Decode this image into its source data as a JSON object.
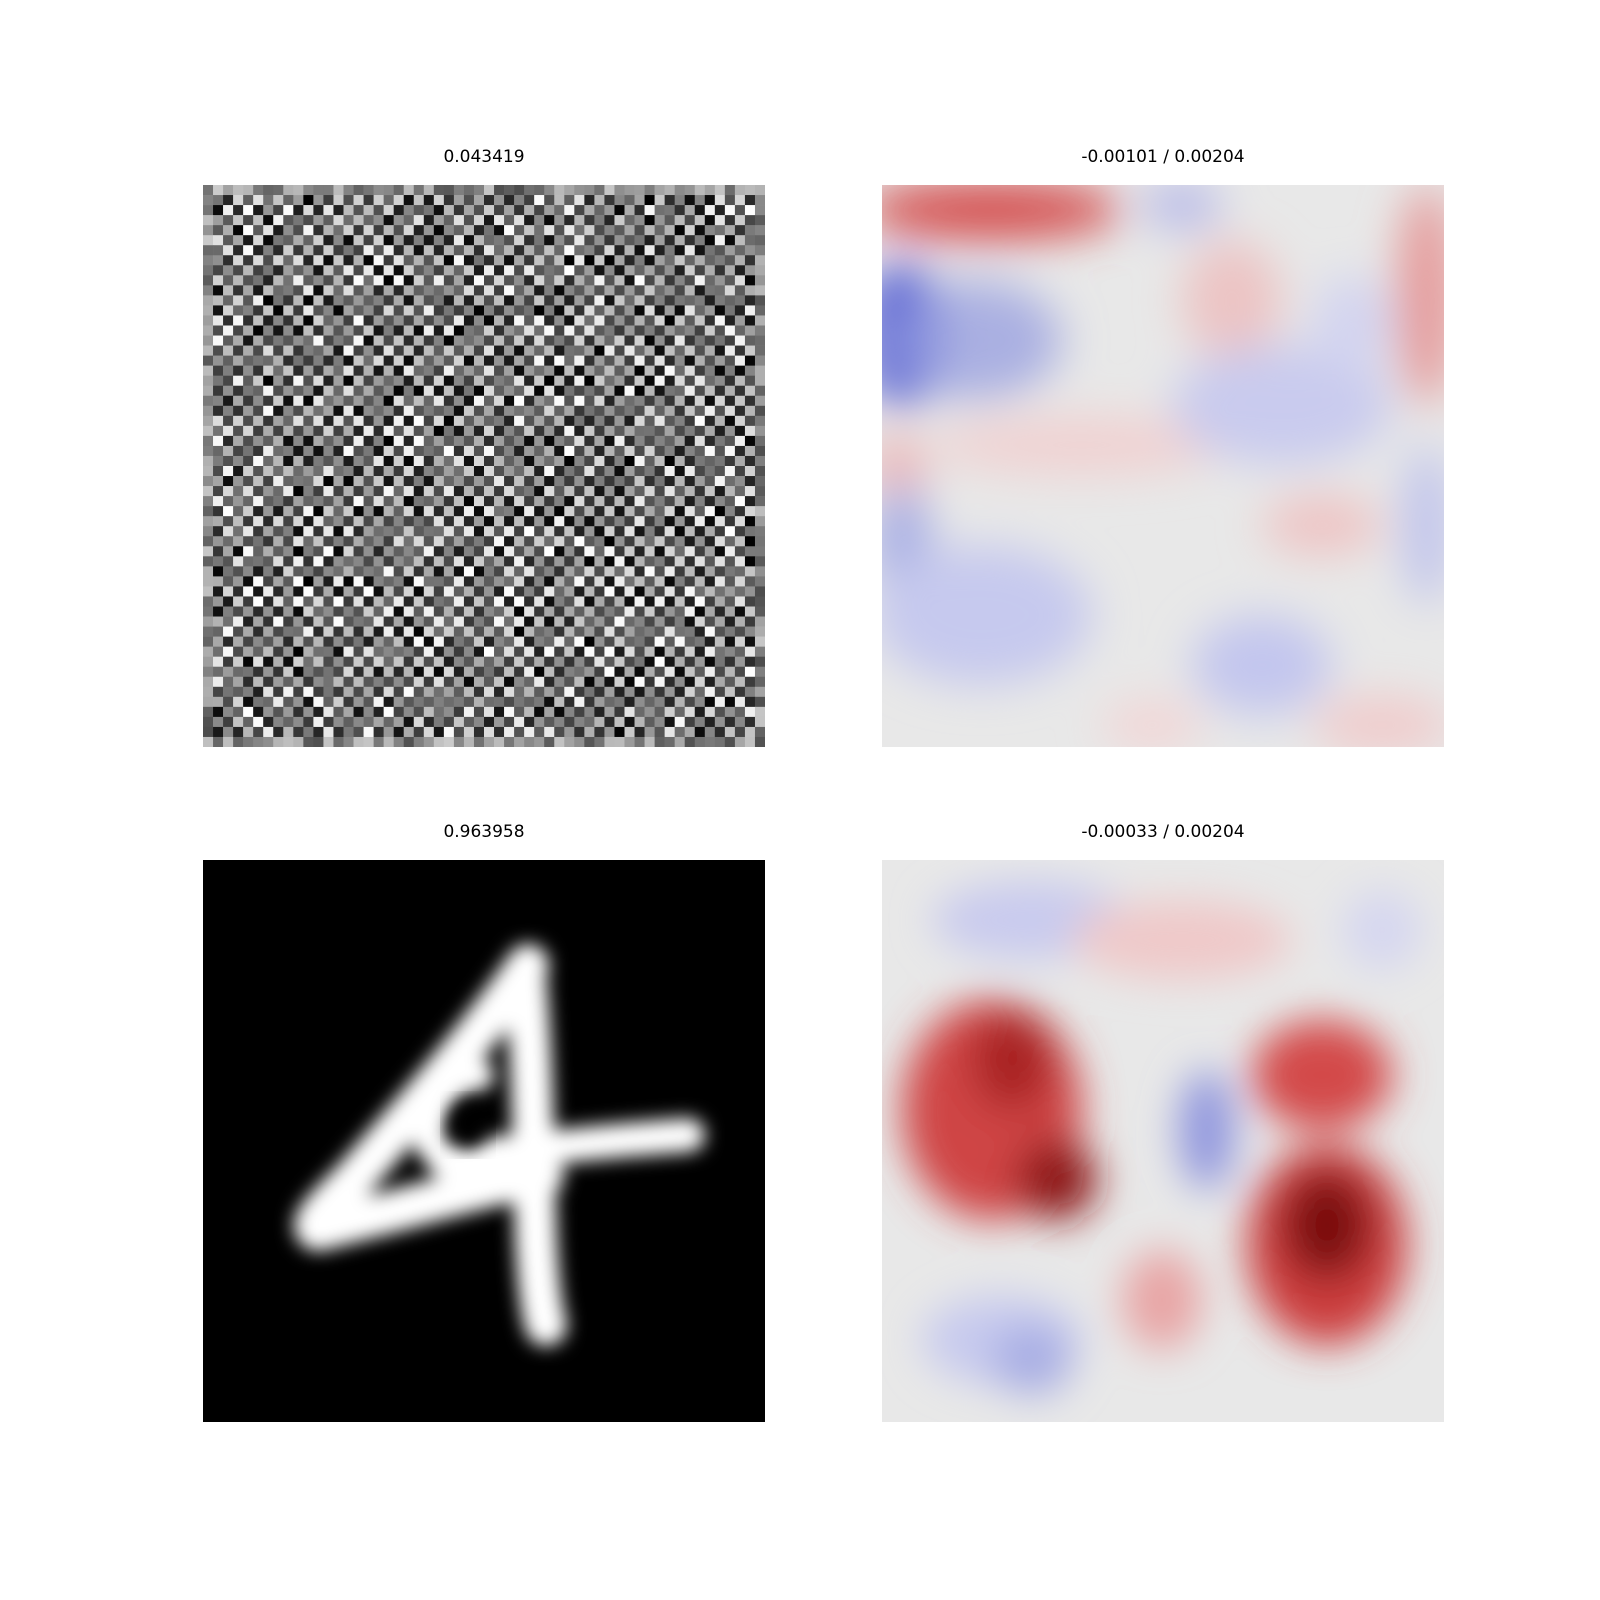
{
  "chart_data": [
    {
      "type": "heatmap",
      "title": "0.043419",
      "colormap": "gray",
      "content": "noise-checkerboard",
      "grid": false
    },
    {
      "type": "heatmap",
      "title": "-0.00101 / 0.00204",
      "colormap": "diverging-blue-white-red",
      "content": "smooth-attribution",
      "grid": false
    },
    {
      "type": "heatmap",
      "title": "0.963958",
      "colormap": "gray",
      "content": "digit-4",
      "grid": false
    },
    {
      "type": "heatmap",
      "title": "-0.00033 / 0.00204",
      "colormap": "diverging-blue-white-red",
      "content": "smooth-attribution",
      "grid": false
    }
  ],
  "colors": {
    "background": "#ffffff",
    "positive": "#b40426",
    "negative": "#3b4cc0",
    "neutral": "#e6e6e6"
  }
}
